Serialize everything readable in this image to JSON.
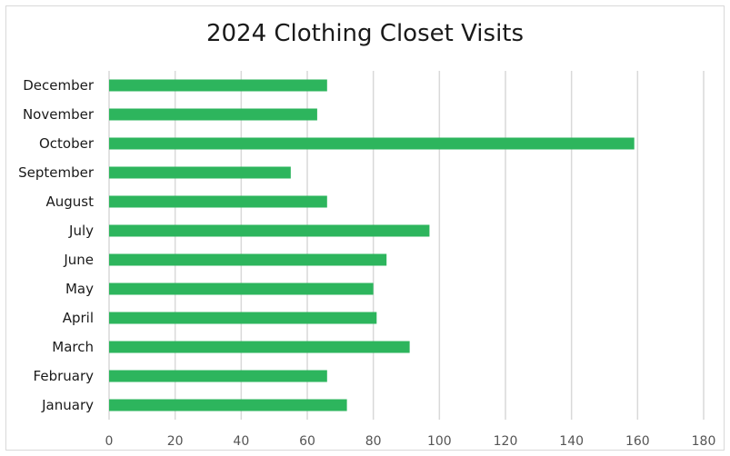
{
  "chart_data": {
    "type": "bar",
    "orientation": "horizontal",
    "title": "2024 Clothing Closet Visits",
    "categories": [
      "January",
      "February",
      "March",
      "April",
      "May",
      "June",
      "July",
      "August",
      "September",
      "October",
      "November",
      "December"
    ],
    "values": [
      72,
      66,
      91,
      81,
      80,
      84,
      97,
      66,
      55,
      159,
      63,
      66
    ],
    "xlim": [
      0,
      180
    ],
    "xticks": [
      "0",
      "20",
      "40",
      "60",
      "80",
      "100",
      "120",
      "140",
      "160",
      "180"
    ],
    "grid": "vertical",
    "bar_color": "#2db55d",
    "grid_color": "#d9d9d9"
  }
}
